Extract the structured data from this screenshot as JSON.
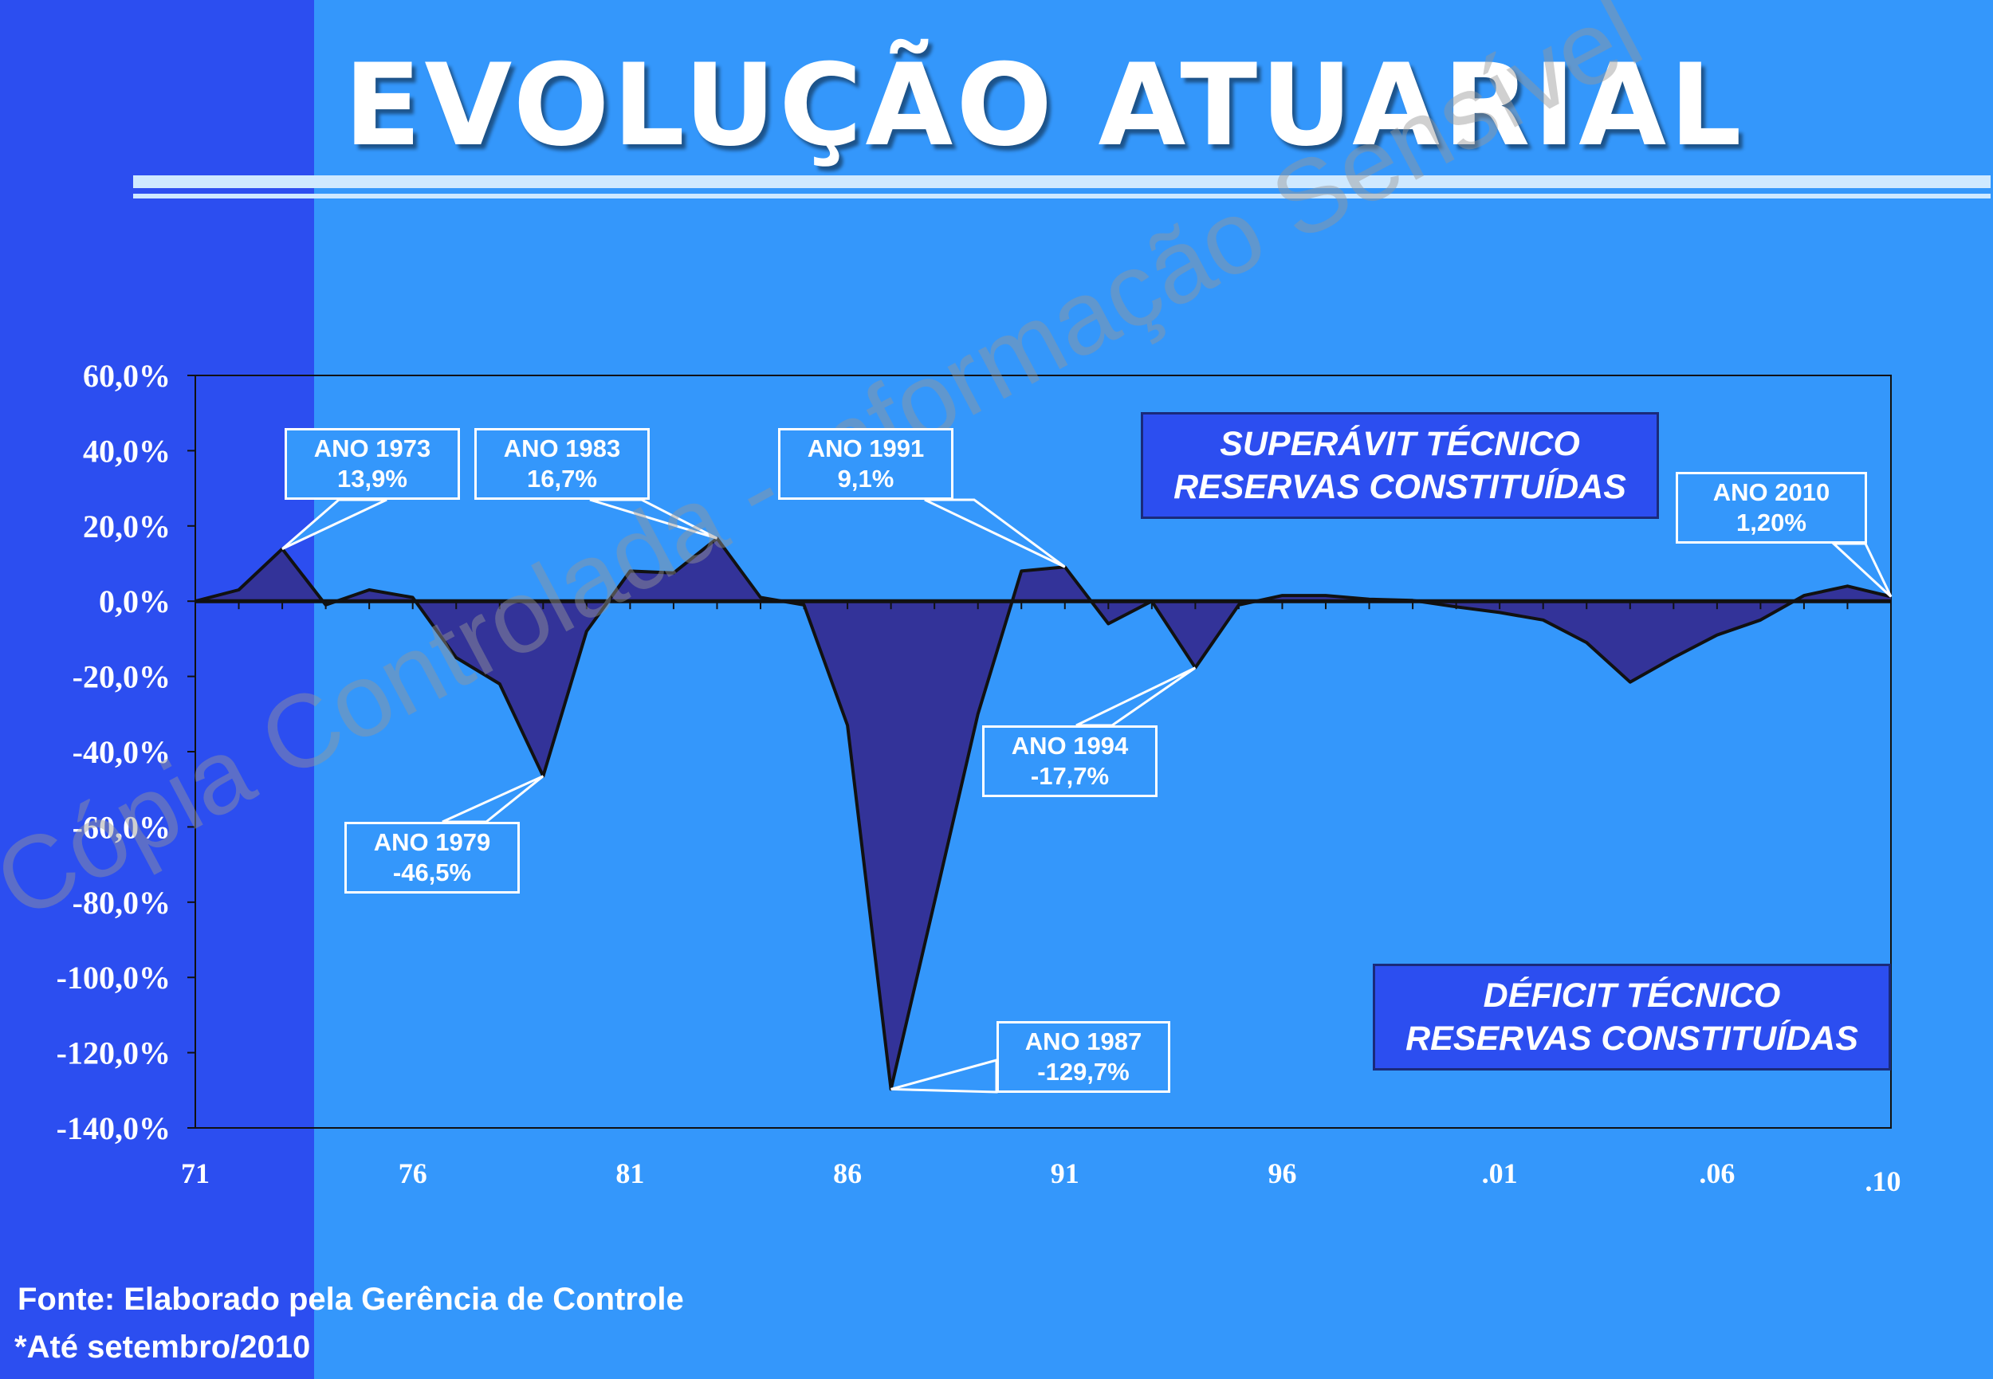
{
  "title": "EVOLUÇÃO ATUARIAL",
  "watermark": "Cópia Controlada - Informação Sensível",
  "colors": {
    "background": "#3497fb",
    "left_band": "#2c4ef0",
    "area_fill": "#333399",
    "line": "#111111"
  },
  "chart_data": {
    "type": "area",
    "title": "",
    "ylim": [
      -140,
      60
    ],
    "xlim": [
      1971,
      2010
    ],
    "y_ticks": [
      {
        "value": 60,
        "label": "60,0%"
      },
      {
        "value": 40,
        "label": "40,0%"
      },
      {
        "value": 20,
        "label": "20,0%"
      },
      {
        "value": 0,
        "label": "0,0%"
      },
      {
        "value": -20,
        "label": "-20,0%"
      },
      {
        "value": -40,
        "label": "-40,0%"
      },
      {
        "value": -60,
        "label": "-60,0%"
      },
      {
        "value": -80,
        "label": "-80,0%"
      },
      {
        "value": -100,
        "label": "-100,0%"
      },
      {
        "value": -120,
        "label": "-120,0%"
      },
      {
        "value": -140,
        "label": "-140,0%"
      }
    ],
    "x_ticks": [
      {
        "value": 1971,
        "label": "71"
      },
      {
        "value": 1976,
        "label": "76"
      },
      {
        "value": 1981,
        "label": "81"
      },
      {
        "value": 1986,
        "label": "86"
      },
      {
        "value": 1991,
        "label": "91"
      },
      {
        "value": 1996,
        "label": "96"
      },
      {
        "value": 2001,
        "label": ".01"
      },
      {
        "value": 2006,
        "label": ".06"
      },
      {
        "value": 2010,
        "label": ".10"
      }
    ],
    "x": [
      1971,
      1972,
      1973,
      1974,
      1975,
      1976,
      1977,
      1978,
      1979,
      1980,
      1981,
      1982,
      1983,
      1984,
      1985,
      1986,
      1987,
      1988,
      1989,
      1990,
      1991,
      1992,
      1993,
      1994,
      1995,
      1996,
      1997,
      1998,
      1999,
      2000,
      2001,
      2002,
      2003,
      2004,
      2005,
      2006,
      2007,
      2008,
      2009,
      2010
    ],
    "values": [
      0,
      3,
      13.9,
      -1,
      3,
      1,
      -15,
      -22,
      -46.5,
      -8,
      8,
      7.5,
      16.7,
      1,
      -1,
      -33,
      -129.7,
      -80,
      -30,
      8,
      9.1,
      -6,
      0,
      -17.7,
      -1,
      1.5,
      1.5,
      0.5,
      0.2,
      -1.5,
      -3,
      -5,
      -11,
      -21.5,
      -15,
      -9,
      -5,
      1.5,
      4,
      1.2
    ],
    "annotations": [
      {
        "x": 1973,
        "line1": "ANO 1973",
        "line2": "13,9%"
      },
      {
        "x": 1983,
        "line1": "ANO 1983",
        "line2": "16,7%"
      },
      {
        "x": 1991,
        "line1": "ANO 1991",
        "line2": "9,1%"
      },
      {
        "x": 2010,
        "line1": "ANO 2010",
        "line2": "1,20%"
      },
      {
        "x": 1979,
        "line1": "ANO 1979",
        "line2": "-46,5%"
      },
      {
        "x": 1994,
        "line1": "ANO 1994",
        "line2": "-17,7%"
      },
      {
        "x": 1987,
        "line1": "ANO 1987",
        "line2": "-129,7%"
      }
    ]
  },
  "legend": {
    "superavit_line1": "SUPERÁVIT TÉCNICO",
    "superavit_line2": "RESERVAS CONSTITUÍDAS",
    "deficit_line1": "DÉFICIT TÉCNICO",
    "deficit_line2": "RESERVAS CONSTITUÍDAS"
  },
  "footer": {
    "source": "Fonte: Elaborado pela Gerência de Controle",
    "note": "*Até setembro/2010"
  }
}
